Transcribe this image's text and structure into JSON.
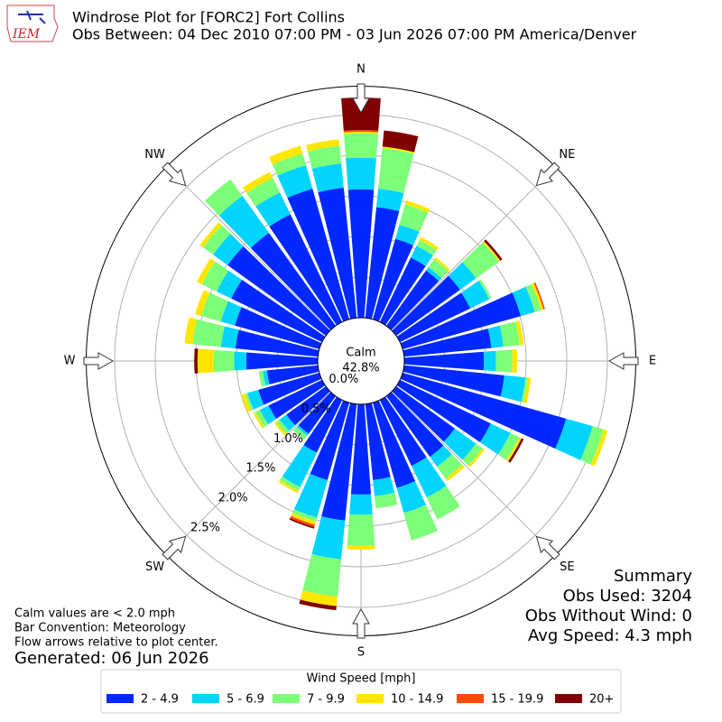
{
  "chart_data": {
    "type": "windrose",
    "logo": "IEM",
    "title": "Windrose Plot for [FORC2] Fort Collins",
    "subtitle": "Obs Between: 04 Dec 2010 07:00 PM - 03 Jun 2026 07:00 PM America/Denver",
    "calm_label": "Calm",
    "calm_value": 42.8,
    "calm_value_label": "42.8%",
    "x": [
      0,
      10,
      20,
      30,
      40,
      50,
      60,
      70,
      80,
      90,
      100,
      110,
      120,
      130,
      140,
      150,
      160,
      170,
      180,
      190,
      200,
      210,
      220,
      230,
      240,
      250,
      260,
      270,
      280,
      290,
      300,
      310,
      320,
      330,
      340,
      350
    ],
    "xticks": [
      {
        "value": 0,
        "label": "N"
      },
      {
        "value": 45,
        "label": "NE"
      },
      {
        "value": 90,
        "label": "E"
      },
      {
        "value": 135,
        "label": "SE"
      },
      {
        "value": 180,
        "label": "S"
      },
      {
        "value": 225,
        "label": "SW"
      },
      {
        "value": 270,
        "label": "W"
      },
      {
        "value": 315,
        "label": "NW"
      }
    ],
    "ylim": [
      0,
      2.85
    ],
    "yticks": [
      {
        "value": 0,
        "label": "0.0%"
      },
      {
        "value": 0.5,
        "label": "0.5%"
      },
      {
        "value": 1.0,
        "label": "1.0%"
      },
      {
        "value": 1.5,
        "label": "1.5%"
      },
      {
        "value": 2.0,
        "label": "2.0%"
      },
      {
        "value": 2.5,
        "label": "2.5%"
      }
    ],
    "grid": true,
    "legend_title": "Wind Speed [mph]",
    "series": [
      {
        "name": "2 - 4.9",
        "color": "#0028ff",
        "values": [
          1.58,
          1.37,
          1.03,
          0.88,
          0.84,
          0.97,
          0.96,
          1.51,
          1.08,
          0.98,
          1.24,
          2.09,
          1.24,
          0.89,
          0.92,
          0.9,
          1.09,
          0.94,
          1.11,
          1.44,
          0.99,
          0.72,
          0.57,
          0.6,
          0.73,
          0.78,
          0.63,
          0.88,
          1.02,
          1.08,
          1.24,
          1.49,
          1.41,
          1.47,
          1.67,
          1.61
        ]
      },
      {
        "name": "5 - 6.9",
        "color": "#00d4ff",
        "values": [
          0.39,
          0.23,
          0.18,
          0.16,
          0.05,
          0.24,
          0.26,
          0.18,
          0.15,
          0.15,
          0.26,
          0.34,
          0.27,
          0.32,
          0.15,
          0.43,
          0.32,
          0.2,
          0.25,
          0.48,
          0.48,
          0.47,
          0.03,
          0.1,
          0.12,
          0.14,
          0.05,
          0.15,
          0.18,
          0.18,
          0.2,
          0.22,
          0.56,
          0.3,
          0.3,
          0.3
        ]
      },
      {
        "name": "7 - 9.9",
        "color": "#7cff79",
        "values": [
          0.3,
          0.5,
          0.26,
          0.08,
          0.12,
          0.35,
          0.03,
          0.08,
          0.2,
          0.2,
          0.03,
          0.14,
          0.12,
          0.1,
          0.18,
          0.3,
          0.35,
          0.15,
          0.38,
          0.46,
          0.05,
          0.05,
          0.06,
          0.05,
          0.06,
          0.03,
          0.05,
          0.25,
          0.35,
          0.25,
          0.2,
          0.15,
          0.25,
          0.2,
          0.15,
          0.22
        ]
      },
      {
        "name": "10 - 14.9",
        "color": "#ffe600",
        "values": [
          0.02,
          0.02,
          0.05,
          0.04,
          0.03,
          0.02,
          0,
          0.03,
          0.05,
          0.06,
          0.04,
          0.05,
          0.03,
          0.03,
          0.04,
          0,
          0,
          0,
          0.05,
          0.12,
          0.04,
          0.03,
          0,
          0.03,
          0.03,
          0.05,
          0,
          0.2,
          0.1,
          0.08,
          0.07,
          0.05,
          0,
          0.08,
          0.1,
          0.08
        ]
      },
      {
        "name": "15 - 19.9",
        "color": "#ff4a00",
        "values": [
          0.02,
          0,
          0,
          0,
          0,
          0,
          0,
          0.02,
          0,
          0,
          0,
          0,
          0,
          0,
          0,
          0,
          0,
          0,
          0,
          0,
          0.03,
          0,
          0,
          0,
          0,
          0,
          0,
          0,
          0,
          0,
          0,
          0,
          0,
          0,
          0,
          0
        ]
      },
      {
        "name": "20+",
        "color": "#800000",
        "values": [
          0.4,
          0.2,
          0,
          0,
          0,
          0.03,
          0,
          0,
          0,
          0,
          0,
          0,
          0.03,
          0,
          0,
          0,
          0,
          0,
          0,
          0.05,
          0.02,
          0,
          0,
          0,
          0,
          0,
          0,
          0.04,
          0,
          0,
          0,
          0,
          0,
          0,
          0,
          0
        ]
      }
    ],
    "notes": [
      "Calm values are < 2.0 mph",
      "Bar Convention: Meteorology",
      "Flow arrows relative to plot center."
    ],
    "generated": "Generated: 06 Jun 2026",
    "summary_title": "Summary",
    "summary": [
      "Obs Used: 3204",
      "Obs Without Wind: 0",
      "Avg Speed: 4.3 mph"
    ]
  }
}
